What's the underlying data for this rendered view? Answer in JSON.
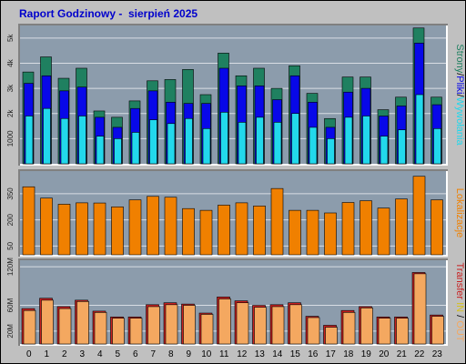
{
  "page": {
    "title": "Raport Godzinowy -  sierpień 2025"
  },
  "colors": {
    "background": "#c0c0c0",
    "plot_bg": "#8c9cac",
    "grid": "#d8dde4",
    "strony": "#1f8060",
    "pliki": "#0808e8",
    "wywolania": "#22d8ec",
    "lokalizacje": "#f08000",
    "transfer_in": "#c82020",
    "transfer_out": "#f4a860"
  },
  "chart_data": [
    {
      "type": "bar",
      "categories": [
        "0",
        "1",
        "2",
        "3",
        "4",
        "5",
        "6",
        "7",
        "8",
        "9",
        "10",
        "11",
        "12",
        "13",
        "14",
        "15",
        "16",
        "17",
        "18",
        "19",
        "20",
        "21",
        "22",
        "23"
      ],
      "ylim": [
        0,
        5500
      ],
      "yticks": [
        1000,
        2000,
        3000,
        4000,
        5000
      ],
      "ytick_labels": [
        "1000",
        "2k",
        "3k",
        "4k",
        "5k"
      ],
      "side_label_parts": [
        "Strony",
        "/",
        "Pliki",
        "/",
        "Wywołania"
      ],
      "series": [
        {
          "name": "Strony",
          "values": [
            3650,
            4250,
            3400,
            3800,
            2100,
            1850,
            2500,
            3300,
            3350,
            3750,
            2750,
            4400,
            3500,
            3800,
            3000,
            3900,
            2800,
            1800,
            3450,
            3450,
            2150,
            2650,
            5400,
            2650
          ]
        },
        {
          "name": "Pliki",
          "values": [
            3200,
            3500,
            2900,
            3050,
            1850,
            1450,
            2200,
            2900,
            2450,
            2400,
            2400,
            3800,
            3100,
            3100,
            2550,
            3500,
            2450,
            1450,
            2850,
            3000,
            1900,
            2300,
            4800,
            2350
          ]
        },
        {
          "name": "Wywołania",
          "values": [
            1900,
            2200,
            1800,
            1900,
            1100,
            1000,
            1250,
            1750,
            1600,
            1800,
            1400,
            2050,
            1650,
            1850,
            1650,
            2000,
            1450,
            1000,
            1850,
            1900,
            1100,
            1350,
            2750,
            1400
          ]
        }
      ]
    },
    {
      "type": "bar",
      "categories": [
        "0",
        "1",
        "2",
        "3",
        "4",
        "5",
        "6",
        "7",
        "8",
        "9",
        "10",
        "11",
        "12",
        "13",
        "14",
        "15",
        "16",
        "17",
        "18",
        "19",
        "20",
        "21",
        "22",
        "23"
      ],
      "ylim": [
        0,
        480
      ],
      "yticks": [
        50,
        200,
        350
      ],
      "ytick_labels": [
        "50",
        "200",
        "350"
      ],
      "side_label_parts": [
        "Lokalizacje"
      ],
      "series": [
        {
          "name": "Lokalizacje",
          "values": [
            390,
            325,
            290,
            298,
            297,
            275,
            315,
            335,
            330,
            265,
            255,
            285,
            298,
            280,
            380,
            255,
            255,
            240,
            300,
            310,
            268,
            320,
            450,
            315
          ]
        }
      ]
    },
    {
      "type": "bar",
      "categories": [
        "0",
        "1",
        "2",
        "3",
        "4",
        "5",
        "6",
        "7",
        "8",
        "9",
        "10",
        "11",
        "12",
        "13",
        "14",
        "15",
        "16",
        "17",
        "18",
        "19",
        "20",
        "21",
        "22",
        "23"
      ],
      "ylim": [
        0,
        130
      ],
      "yticks": [
        20,
        60,
        120
      ],
      "ytick_labels": [
        "20M",
        "60M",
        "120M"
      ],
      "side_label_parts": [
        "Transfer",
        "IN",
        "/",
        "OUT"
      ],
      "series": [
        {
          "name": "IN",
          "values": [
            55,
            71,
            58,
            68,
            51,
            42,
            42,
            61,
            64,
            62,
            48,
            73,
            67,
            60,
            61,
            64,
            43,
            29,
            52,
            58,
            42,
            42,
            111,
            45
          ]
        },
        {
          "name": "OUT",
          "values": [
            52,
            68,
            55,
            66,
            49,
            40,
            40,
            58,
            61,
            60,
            46,
            70,
            64,
            57,
            58,
            61,
            41,
            26,
            49,
            56,
            40,
            40,
            109,
            43
          ]
        }
      ]
    }
  ]
}
